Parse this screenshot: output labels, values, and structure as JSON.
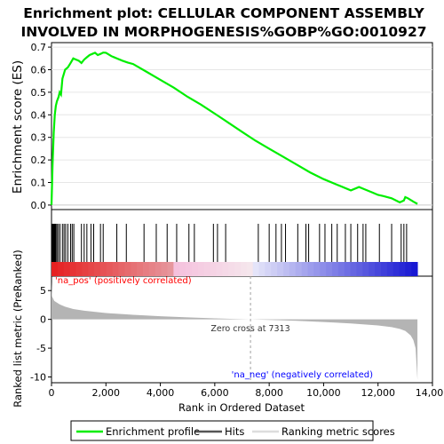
{
  "title": {
    "line1": "Enrichment plot: CELLULAR COMPONENT ASSEMBLY",
    "line2": "INVOLVED IN MORPHOGENESIS%GOBP%GO:0010927"
  },
  "colors": {
    "enrichment_line": "#00ee00",
    "hit_line": "#000000",
    "metric_fill": "#b4b4b4",
    "zero_cross_line": "#a0a0a0",
    "pos_label": "#ff0000",
    "neg_label": "#0000ff"
  },
  "chart_data": {
    "type": "line",
    "panels": {
      "enrichment": {
        "ylabel": "Enrichment score (ES)",
        "ylim": [
          -0.02,
          0.72
        ],
        "yticks": [
          0.0,
          0.1,
          0.2,
          0.3,
          0.4,
          0.5,
          0.6,
          0.7
        ],
        "ytick_labels": [
          "0.0",
          "0.1",
          "0.2",
          "0.3",
          "0.4",
          "0.5",
          "0.6",
          "0.7"
        ],
        "series": [
          {
            "name": "Enrichment profile",
            "x": [
              0,
              40,
              80,
              120,
              160,
              200,
              260,
              300,
              350,
              400,
              450,
              500,
              600,
              700,
              800,
              900,
              1000,
              1100,
              1200,
              1300,
              1400,
              1500,
              1600,
              1700,
              1800,
              1900,
              2000,
              2200,
              2400,
              2600,
              2800,
              3000,
              3500,
              4000,
              4500,
              5000,
              5500,
              6000,
              6500,
              7000,
              7500,
              8000,
              8500,
              9000,
              9500,
              10000,
              10500,
              11000,
              11300,
              11500,
              11800,
              12000,
              12200,
              12500,
              12800,
              12950,
              13000,
              13100,
              13300,
              13450
            ],
            "y": [
              0.0,
              0.18,
              0.32,
              0.4,
              0.44,
              0.46,
              0.48,
              0.5,
              0.49,
              0.56,
              0.58,
              0.6,
              0.61,
              0.63,
              0.65,
              0.645,
              0.64,
              0.63,
              0.645,
              0.655,
              0.665,
              0.67,
              0.675,
              0.665,
              0.67,
              0.676,
              0.675,
              0.66,
              0.65,
              0.64,
              0.632,
              0.625,
              0.59,
              0.555,
              0.52,
              0.48,
              0.445,
              0.405,
              0.365,
              0.325,
              0.285,
              0.25,
              0.215,
              0.18,
              0.145,
              0.115,
              0.09,
              0.065,
              0.08,
              0.07,
              0.055,
              0.045,
              0.04,
              0.03,
              0.012,
              0.02,
              0.035,
              0.03,
              0.015,
              0.005
            ]
          }
        ]
      },
      "hits": {
        "series_name": "Hits",
        "positions": [
          20,
          40,
          60,
          80,
          100,
          130,
          160,
          200,
          250,
          310,
          400,
          460,
          520,
          600,
          700,
          760,
          820,
          1100,
          1200,
          1300,
          1450,
          1550,
          1800,
          1900,
          2400,
          2750,
          3400,
          3850,
          4250,
          4600,
          5050,
          5250,
          5950,
          6100,
          6400,
          7600,
          8000,
          8250,
          8450,
          8600,
          9050,
          9350,
          9450,
          9850,
          10050,
          10300,
          10500,
          10800,
          11000,
          11250,
          11450,
          11550,
          12050,
          12500,
          12850,
          12950,
          13050
        ]
      },
      "ranking": {
        "series_name": "Ranking metric scores",
        "ylabel": "Ranked list metric (PreRanked)",
        "ylim": [
          -11,
          7.5
        ],
        "yticks": [
          -10,
          -5,
          0,
          5
        ],
        "ytick_labels": [
          "-10",
          "-5",
          "0",
          "5"
        ],
        "x": [
          0,
          20,
          100,
          300,
          500,
          800,
          1200,
          2000,
          3000,
          4000,
          5000,
          6000,
          7000,
          7313,
          8000,
          9000,
          10000,
          11000,
          12000,
          12500,
          12800,
          13000,
          13200,
          13300,
          13380,
          13450
        ],
        "values": [
          6.5,
          4.0,
          3.2,
          2.6,
          2.2,
          1.8,
          1.5,
          1.1,
          0.8,
          0.55,
          0.35,
          0.18,
          0.04,
          0.0,
          -0.1,
          -0.25,
          -0.45,
          -0.7,
          -1.05,
          -1.35,
          -1.65,
          -2.0,
          -2.8,
          -3.6,
          -5.0,
          -10.5
        ],
        "zero_cross_label": "Zero cross at 7313",
        "zero_cross_rank": 7313,
        "pos_label": "'na_pos' (positively correlated)",
        "neg_label": "'na_neg' (negatively correlated)"
      }
    },
    "xaxis": {
      "label": "Rank in Ordered Dataset",
      "xlim": [
        0,
        14000
      ],
      "ticks": [
        0,
        2000,
        4000,
        6000,
        8000,
        10000,
        12000,
        14000
      ],
      "tick_labels": [
        "0",
        "2,000",
        "4,000",
        "6,000",
        "8,000",
        "10,000",
        "12,000",
        "14,000"
      ]
    },
    "n_genes": 13450,
    "legend": {
      "placement": "bottom",
      "items": [
        "Enrichment profile",
        "Hits",
        "Ranking metric scores"
      ]
    }
  }
}
